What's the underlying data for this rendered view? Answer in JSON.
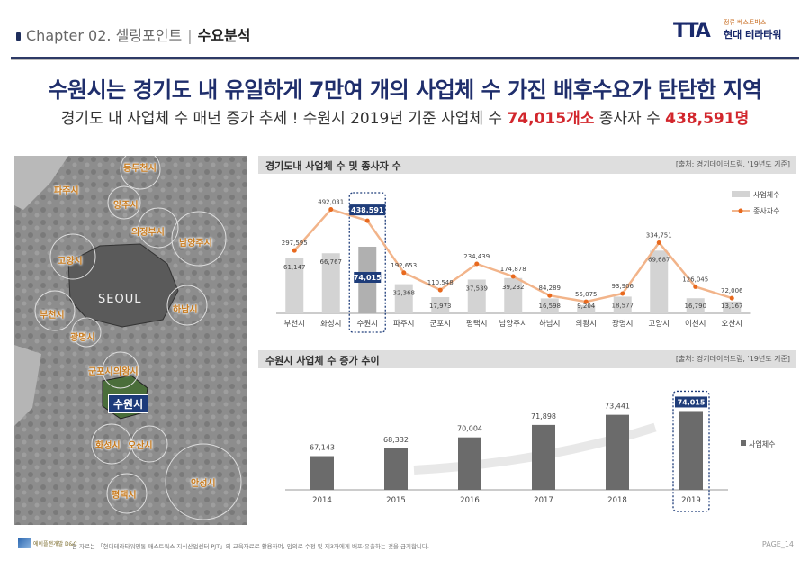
{
  "header": {
    "chapter": "Chapter 02. 셀링포인트",
    "section": "수요분석",
    "logo_mark": "TTA",
    "logo_sub": "정류 베스트박스",
    "logo_name": "현대 테라타워"
  },
  "headline": "수원시는 경기도 내 유일하게 7만여 개의 사업체 수 가진  배후수요가 탄탄한 지역",
  "subline": {
    "prefix": "경기도 내 사업체 수 매년 증가 추세 ! 수원시 2019년 기준 사업체 수 ",
    "businesses": "74,015개소",
    "middle": " 종사자 수 ",
    "workers": "438,591명"
  },
  "map": {
    "seoul": "SEOUL",
    "highlight": "수원시",
    "labels": [
      "동두천시",
      "파주시",
      "양주시",
      "의정부시",
      "남양주시",
      "고양시",
      "부천시",
      "광명시",
      "하남시",
      "군포시",
      "의왕시",
      "화성시",
      "오산시",
      "안성시",
      "평택시"
    ]
  },
  "colors": {
    "bar": "#d3d3d3",
    "bar_dark": "#b0b0b0",
    "line": "#f2b48a",
    "marker": "#e8691e",
    "highlight_frame": "#1f3d7a"
  },
  "chart1_header": {
    "title": "경기도내 사업체 수 및 종사자 수",
    "source": "[출처: 경기데이터드림, '19년도 기준]"
  },
  "chart2_header": {
    "title": "수원시 사업체 수 증가 추이",
    "source": "[출처: 경기데이터드림, '19년도 기준]"
  },
  "chart_data": [
    {
      "type": "bar",
      "title": "경기도내 사업체 수 및 종사자 수",
      "categories": [
        "부천시",
        "화성시",
        "수원시",
        "파주시",
        "군포시",
        "평택시",
        "남양주시",
        "하남시",
        "의왕시",
        "광명시",
        "고양시",
        "이천시",
        "오산시"
      ],
      "series": [
        {
          "name": "사업체수",
          "type": "bar",
          "values": [
            61147,
            66767,
            74015,
            32368,
            17973,
            37539,
            39232,
            16598,
            9204,
            18577,
            69687,
            16790,
            13167
          ]
        },
        {
          "name": "종사자수",
          "type": "line",
          "values": [
            297595,
            492031,
            438591,
            192653,
            110548,
            234439,
            174878,
            84289,
            55075,
            93906,
            334751,
            126045,
            72006
          ]
        }
      ],
      "bar_labels": [
        "61,147",
        "66,767",
        "74,015",
        "32,368",
        "17,973",
        "37,539",
        "39,232",
        "16,598",
        "9,204",
        "18,577",
        "69,687",
        "16,790",
        "13,167"
      ],
      "line_labels": [
        "297,595",
        "492,031",
        "438,591",
        "192,653",
        "110,548",
        "234,439",
        "174,878",
        "84,289",
        "55,075",
        "93,906",
        "334,751",
        "126,045",
        "72,006"
      ],
      "highlight": "수원시",
      "legend": [
        "사업체수",
        "종사자수"
      ],
      "legend_position": "top-right"
    },
    {
      "type": "bar",
      "title": "수원시 사업체 수 증가 추이",
      "categories": [
        "2014",
        "2015",
        "2016",
        "2017",
        "2018",
        "2019"
      ],
      "series": [
        {
          "name": "사업체수",
          "values": [
            67143,
            68332,
            70004,
            71898,
            73441,
            74015
          ]
        }
      ],
      "value_labels": [
        "67,143",
        "68,332",
        "70,004",
        "71,898",
        "73,441",
        "74,015"
      ],
      "highlight": "2019",
      "legend": [
        "사업체수"
      ],
      "legend_position": "right"
    }
  ],
  "footer": {
    "brand": "에이플랜개발 D&C",
    "note": "본 자료는 「현대테라타워영통 매스트윅스 지식산업센터 PJT」의 교육자료로 활용하며, 임의로 수정 및 제3자에게 배포·유출하는 것을 금지합니다.",
    "page": "PAGE_14"
  }
}
